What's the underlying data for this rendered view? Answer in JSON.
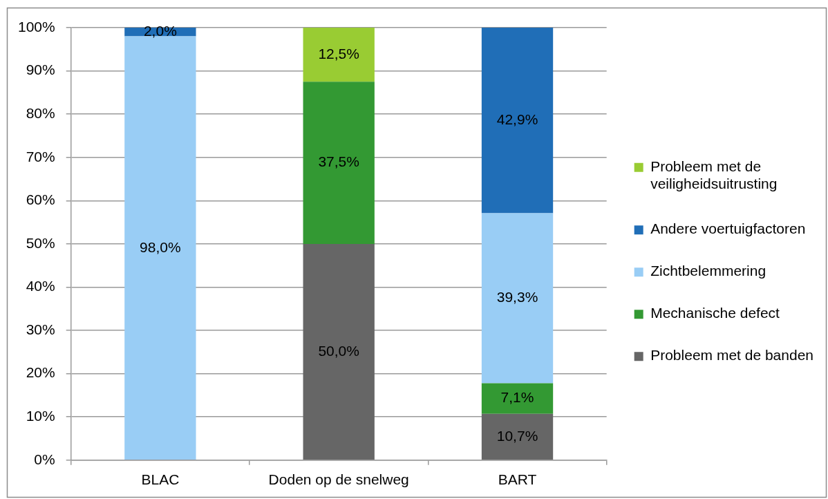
{
  "chart_data": {
    "type": "bar",
    "stacked": true,
    "categories": [
      "BLAC",
      "Doden op de snelweg",
      "BART"
    ],
    "series": [
      {
        "name": "Probleem met de banden",
        "color": "#666666",
        "values": [
          null,
          50.0,
          10.7
        ],
        "value_labels": [
          null,
          "50,0%",
          "10,7%"
        ]
      },
      {
        "name": "Mechanische defect",
        "color": "#339933",
        "values": [
          null,
          37.5,
          7.1
        ],
        "value_labels": [
          null,
          "37,5%",
          "7,1%"
        ]
      },
      {
        "name": "Zichtbelemmering",
        "color": "#99cdf5",
        "values": [
          98.0,
          null,
          39.3
        ],
        "value_labels": [
          "98,0%",
          null,
          "39,3%"
        ]
      },
      {
        "name": "Andere voertuigfactoren",
        "color": "#206eb7",
        "values": [
          2.0,
          null,
          42.9
        ],
        "value_labels": [
          "2,0%",
          null,
          "42,9%"
        ]
      },
      {
        "name": "Probleem met de veiligheidsuitrusting",
        "color": "#99cc33",
        "values": [
          null,
          12.5,
          null
        ],
        "value_labels": [
          null,
          "12,5%",
          null
        ]
      }
    ],
    "ylim": [
      0,
      100
    ],
    "yticks": [
      {
        "value": 0,
        "label": "0%"
      },
      {
        "value": 10,
        "label": "10%"
      },
      {
        "value": 20,
        "label": "20%"
      },
      {
        "value": 30,
        "label": "30%"
      },
      {
        "value": 40,
        "label": "40%"
      },
      {
        "value": 50,
        "label": "50%"
      },
      {
        "value": 60,
        "label": "60%"
      },
      {
        "value": 70,
        "label": "70%"
      },
      {
        "value": 80,
        "label": "80%"
      },
      {
        "value": 90,
        "label": "90%"
      },
      {
        "value": 100,
        "label": "100%"
      }
    ],
    "grid": "y",
    "legend": "right"
  }
}
